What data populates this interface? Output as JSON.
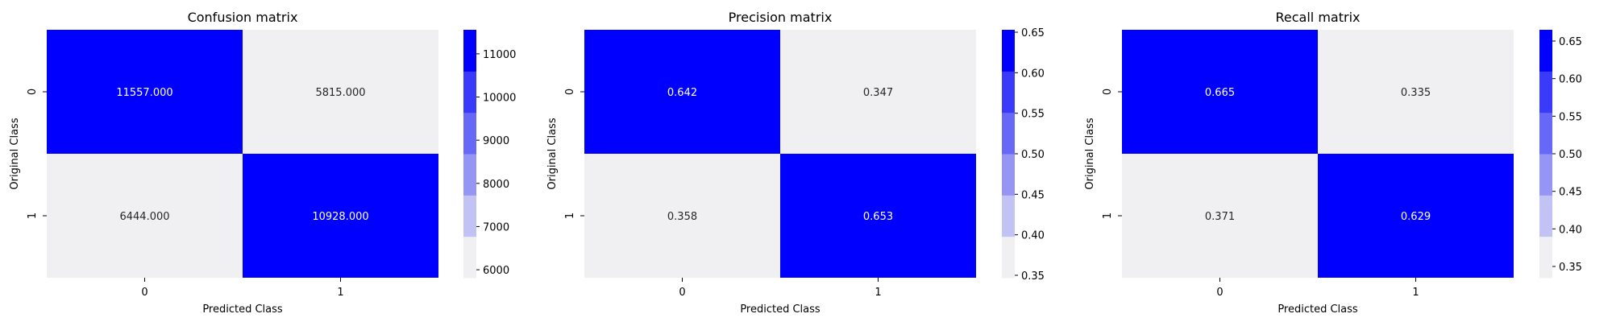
{
  "chart_data": [
    {
      "type": "heatmap",
      "title": "Confusion matrix",
      "xlabel": "Predicted Class",
      "ylabel": "Original Class",
      "x_categories": [
        "0",
        "1"
      ],
      "y_categories": [
        "0",
        "1"
      ],
      "values": [
        [
          11557.0,
          5815.0
        ],
        [
          6444.0,
          10928.0
        ]
      ],
      "cell_labels": [
        [
          "11557.000",
          "5815.000"
        ],
        [
          "6444.000",
          "10928.000"
        ]
      ],
      "colorbar": {
        "range": [
          5815,
          11557
        ],
        "ticks": [
          6000,
          7000,
          8000,
          9000,
          10000,
          11000
        ],
        "tick_labels": [
          "6000",
          "7000",
          "8000",
          "9000",
          "10000",
          "11000"
        ]
      }
    },
    {
      "type": "heatmap",
      "title": "Precision matrix",
      "xlabel": "Predicted Class",
      "ylabel": "Original Class",
      "x_categories": [
        "0",
        "1"
      ],
      "y_categories": [
        "0",
        "1"
      ],
      "values": [
        [
          0.642,
          0.347
        ],
        [
          0.358,
          0.653
        ]
      ],
      "cell_labels": [
        [
          "0.642",
          "0.347"
        ],
        [
          "0.358",
          "0.653"
        ]
      ],
      "colorbar": {
        "range": [
          0.347,
          0.653
        ],
        "ticks": [
          0.35,
          0.4,
          0.45,
          0.5,
          0.55,
          0.6,
          0.65
        ],
        "tick_labels": [
          "0.35",
          "0.40",
          "0.45",
          "0.50",
          "0.55",
          "0.60",
          "0.65"
        ]
      }
    },
    {
      "type": "heatmap",
      "title": "Recall matrix",
      "xlabel": "Predicted Class",
      "ylabel": "Original Class",
      "x_categories": [
        "0",
        "1"
      ],
      "y_categories": [
        "0",
        "1"
      ],
      "values": [
        [
          0.665,
          0.335
        ],
        [
          0.371,
          0.629
        ]
      ],
      "cell_labels": [
        [
          "0.665",
          "0.335"
        ],
        [
          "0.371",
          "0.629"
        ]
      ],
      "colorbar": {
        "range": [
          0.335,
          0.665
        ],
        "ticks": [
          0.35,
          0.4,
          0.45,
          0.5,
          0.55,
          0.6,
          0.65
        ],
        "tick_labels": [
          "0.35",
          "0.40",
          "0.45",
          "0.50",
          "0.55",
          "0.60",
          "0.65"
        ]
      }
    }
  ],
  "palette": [
    "#f0f0f2",
    "#c2c2f4",
    "#9595f6",
    "#6868f8",
    "#3a3afb",
    "#0000ff"
  ],
  "text_colors": {
    "dark": "#262626",
    "light": "#ffffff"
  }
}
